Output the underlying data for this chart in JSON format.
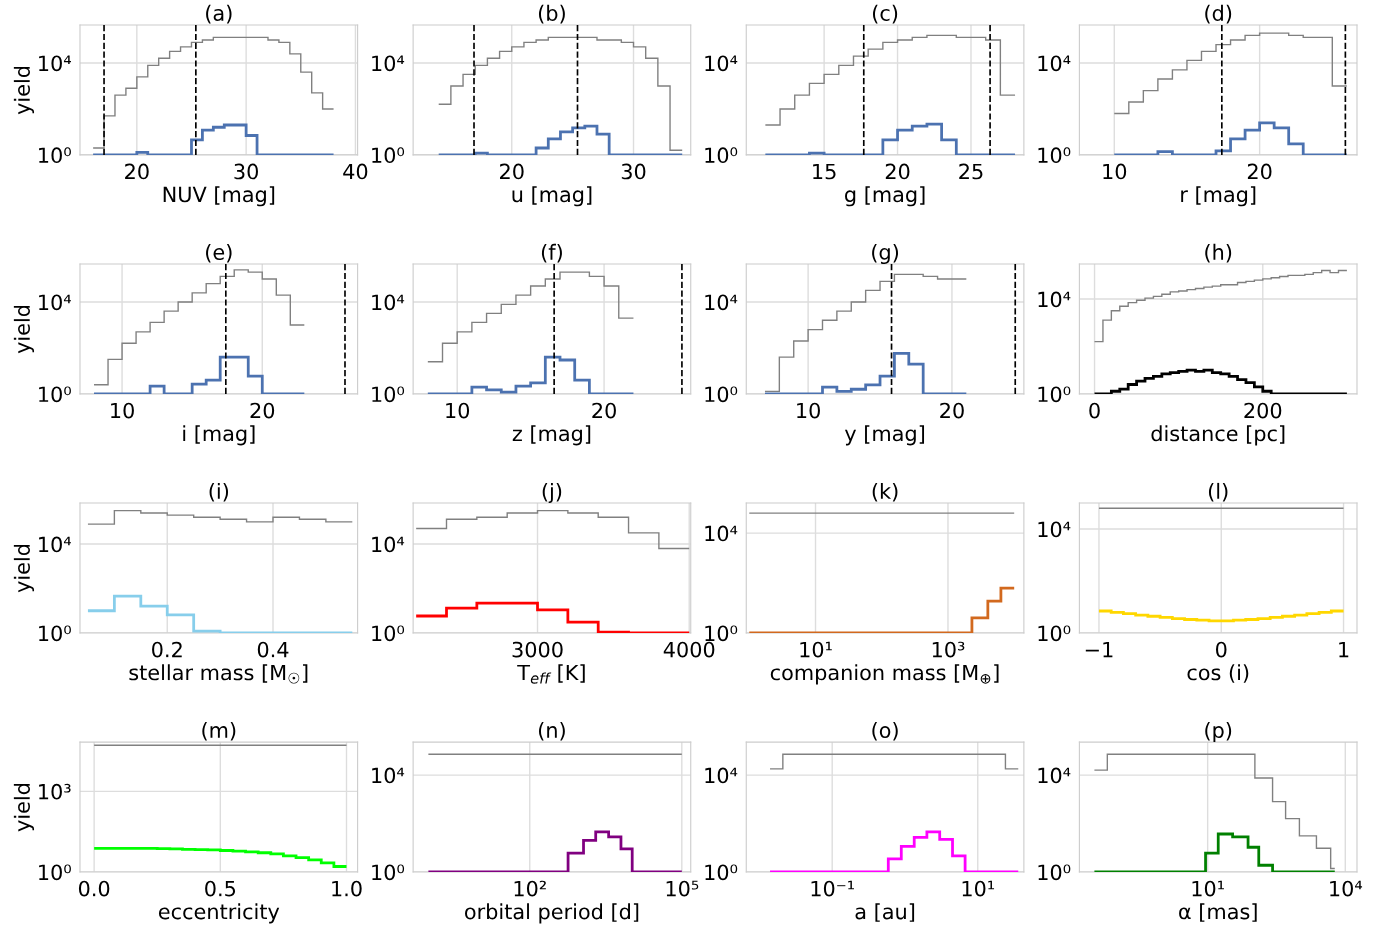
{
  "chart_data": [
    {
      "type": "histogram",
      "title": "(a)",
      "xlabel": "NUV [mag]",
      "ylabel": "yield",
      "log": "y",
      "grid": true,
      "xlim": [
        14.8,
        40.2
      ],
      "xticks": [
        20,
        30,
        40
      ],
      "ylim": [
        1,
        450000
      ],
      "yticks": [
        {
          "value": 1,
          "label": "10⁰"
        },
        {
          "value": 10000,
          "label": "10⁴"
        }
      ],
      "ref_lines": [
        {
          "axis": "x",
          "value": 17,
          "color": "#000000",
          "line_style": "dashed"
        },
        {
          "axis": "x",
          "value": 25.4,
          "color": "#000000",
          "line_style": "dashed"
        }
      ],
      "bins": [
        16,
        17,
        18,
        19,
        20,
        21,
        22,
        23,
        24,
        25,
        26,
        27,
        28,
        29,
        30,
        31,
        32,
        33,
        34,
        35,
        36,
        37,
        38
      ],
      "series": [
        {
          "color": "#808080",
          "values": [
            2,
            50,
            400,
            800,
            2500,
            7900,
            16000,
            32000,
            50000,
            79000,
            100000,
            130000,
            130000,
            130000,
            130000,
            130000,
            100000,
            79000,
            25000,
            4000,
            500,
            100
          ]
        },
        {
          "color": "#4c72b0",
          "values": [
            null,
            null,
            null,
            null,
            1.3,
            null,
            null,
            null,
            null,
            4.5,
            12,
            16,
            20,
            20,
            7,
            1,
            null,
            null,
            null,
            null,
            null,
            null
          ]
        }
      ]
    },
    {
      "type": "histogram",
      "title": "(b)",
      "xlabel": "u [mag]",
      "log": "y",
      "grid": true,
      "xlim": [
        11.9,
        34.7
      ],
      "xticks": [
        20,
        30
      ],
      "ylim": [
        1,
        450000
      ],
      "yticks": [
        {
          "value": 1,
          "label": "10⁰"
        },
        {
          "value": 10000,
          "label": "10⁴"
        }
      ],
      "ref_lines": [
        {
          "axis": "x",
          "value": 16.9,
          "color": "#000000",
          "line_style": "dashed"
        },
        {
          "axis": "x",
          "value": 25.4,
          "color": "#000000",
          "line_style": "dashed"
        }
      ],
      "bins": [
        14,
        15,
        16,
        17,
        18,
        19,
        20,
        21,
        22,
        23,
        24,
        25,
        26,
        27,
        28,
        29,
        30,
        31,
        32,
        33,
        34
      ],
      "series": [
        {
          "color": "#808080",
          "values": [
            160,
            1000,
            3200,
            7900,
            16000,
            32000,
            50000,
            79000,
            100000,
            130000,
            130000,
            130000,
            130000,
            100000,
            100000,
            79000,
            50000,
            16000,
            1000,
            1.6
          ]
        },
        {
          "color": "#4c72b0",
          "values": [
            null,
            null,
            null,
            1.2,
            null,
            null,
            null,
            null,
            2,
            5,
            10,
            15,
            18,
            8,
            null,
            null,
            null,
            null,
            null,
            null
          ]
        }
      ]
    },
    {
      "type": "histogram",
      "title": "(c)",
      "xlabel": "g [mag]",
      "log": "y",
      "grid": true,
      "xlim": [
        9.7,
        28.6
      ],
      "xticks": [
        15,
        20,
        25
      ],
      "ylim": [
        1,
        450000
      ],
      "yticks": [
        {
          "value": 1,
          "label": "10⁰"
        },
        {
          "value": 10000,
          "label": "10⁴"
        }
      ],
      "ref_lines": [
        {
          "axis": "x",
          "value": 17.7,
          "color": "#000000",
          "line_style": "dashed"
        },
        {
          "axis": "x",
          "value": 26.3,
          "color": "#000000",
          "line_style": "dashed"
        }
      ],
      "bins": [
        11,
        12,
        13,
        14,
        15,
        16,
        17,
        18,
        19,
        20,
        21,
        22,
        23,
        24,
        25,
        26,
        27,
        28
      ],
      "series": [
        {
          "color": "#808080",
          "values": [
            20,
            100,
            400,
            1300,
            3200,
            7900,
            20000,
            40000,
            79000,
            100000,
            130000,
            160000,
            160000,
            130000,
            130000,
            100000,
            400
          ]
        },
        {
          "color": "#4c72b0",
          "values": [
            null,
            null,
            null,
            1.2,
            null,
            null,
            null,
            null,
            4.5,
            12,
            18,
            22,
            4.5,
            null,
            null,
            null,
            null
          ]
        }
      ]
    },
    {
      "type": "histogram",
      "title": "(d)",
      "xlabel": "r [mag]",
      "log": "y",
      "grid": true,
      "xlim": [
        7.6,
        26.7
      ],
      "xticks": [
        10,
        20
      ],
      "ylim": [
        1,
        450000
      ],
      "yticks": [
        {
          "value": 1,
          "label": "10⁰"
        },
        {
          "value": 10000,
          "label": "10⁴"
        }
      ],
      "ref_lines": [
        {
          "axis": "x",
          "value": 17.4,
          "color": "#000000",
          "line_style": "dashed"
        },
        {
          "axis": "x",
          "value": 25.9,
          "color": "#000000",
          "line_style": "dashed"
        }
      ],
      "bins": [
        10,
        11,
        12,
        13,
        14,
        15,
        16,
        17,
        18,
        19,
        20,
        21,
        22,
        23,
        24,
        25,
        26
      ],
      "series": [
        {
          "color": "#808080",
          "values": [
            63,
            200,
            630,
            2000,
            5000,
            13000,
            32000,
            63000,
            100000,
            160000,
            200000,
            200000,
            160000,
            130000,
            130000,
            1000
          ]
        },
        {
          "color": "#4c72b0",
          "values": [
            null,
            null,
            null,
            1.4,
            null,
            null,
            null,
            1.5,
            5,
            12,
            25,
            15,
            3,
            null,
            null,
            null
          ]
        }
      ]
    },
    {
      "type": "histogram",
      "title": "(e)",
      "xlabel": "i [mag]",
      "ylabel": "yield",
      "log": "y",
      "grid": true,
      "xlim": [
        7.0,
        26.8
      ],
      "xticks": [
        10,
        20
      ],
      "ylim": [
        1,
        450000
      ],
      "yticks": [
        {
          "value": 1,
          "label": "10⁰"
        },
        {
          "value": 10000,
          "label": "10⁴"
        }
      ],
      "ref_lines": [
        {
          "axis": "x",
          "value": 17.4,
          "color": "#000000",
          "line_style": "dashed"
        },
        {
          "axis": "x",
          "value": 25.9,
          "color": "#000000",
          "line_style": "dashed"
        }
      ],
      "bins": [
        8,
        9,
        10,
        11,
        12,
        13,
        14,
        15,
        16,
        17,
        18,
        19,
        20,
        21,
        22,
        23
      ],
      "series": [
        {
          "color": "#808080",
          "values": [
            2.5,
            32,
            160,
            500,
            1300,
            4000,
            10000,
            25000,
            63000,
            130000,
            250000,
            200000,
            100000,
            20000,
            1000
          ]
        },
        {
          "color": "#4c72b0",
          "values": [
            null,
            null,
            null,
            null,
            2.2,
            null,
            null,
            2.7,
            4,
            40,
            40,
            6,
            null,
            null,
            null
          ]
        }
      ]
    },
    {
      "type": "histogram",
      "title": "(f)",
      "xlabel": "z [mag]",
      "log": "y",
      "grid": true,
      "xlim": [
        7.0,
        25.9
      ],
      "xticks": [
        10,
        20
      ],
      "ylim": [
        1,
        450000
      ],
      "yticks": [
        {
          "value": 1,
          "label": "10⁰"
        },
        {
          "value": 10000,
          "label": "10⁴"
        }
      ],
      "ref_lines": [
        {
          "axis": "x",
          "value": 16.6,
          "color": "#000000",
          "line_style": "dashed"
        },
        {
          "axis": "x",
          "value": 25.3,
          "color": "#000000",
          "line_style": "dashed"
        }
      ],
      "bins": [
        8,
        9,
        10,
        11,
        12,
        13,
        14,
        15,
        16,
        17,
        18,
        19,
        20,
        21,
        22
      ],
      "series": [
        {
          "color": "#808080",
          "values": [
            25,
            160,
            500,
            1300,
            3200,
            7900,
            20000,
            50000,
            100000,
            200000,
            200000,
            130000,
            50000,
            2000
          ]
        },
        {
          "color": "#4c72b0",
          "values": [
            null,
            null,
            null,
            2,
            1.5,
            1.2,
            2.2,
            3,
            40,
            30,
            4,
            null,
            null,
            null
          ]
        }
      ]
    },
    {
      "type": "histogram",
      "title": "(g)",
      "xlabel": "y [mag]",
      "log": "y",
      "grid": true,
      "xlim": [
        5.7,
        25.0
      ],
      "xticks": [
        10,
        20
      ],
      "ylim": [
        1,
        450000
      ],
      "yticks": [
        {
          "value": 1,
          "label": "10⁰"
        },
        {
          "value": 10000,
          "label": "10⁴"
        }
      ],
      "ref_lines": [
        {
          "axis": "x",
          "value": 15.8,
          "color": "#000000",
          "line_style": "dashed"
        },
        {
          "axis": "x",
          "value": 24.4,
          "color": "#000000",
          "line_style": "dashed"
        }
      ],
      "bins": [
        7,
        8,
        9,
        10,
        11,
        12,
        13,
        14,
        15,
        16,
        17,
        18,
        19,
        20,
        21
      ],
      "series": [
        {
          "color": "#808080",
          "values": [
            1.3,
            40,
            200,
            630,
            1600,
            4000,
            10000,
            32000,
            79000,
            160000,
            160000,
            130000,
            100000,
            100000
          ]
        },
        {
          "color": "#4c72b0",
          "values": [
            null,
            null,
            null,
            null,
            2,
            1.3,
            1.6,
            2.5,
            6,
            58,
            20,
            null,
            null,
            null
          ]
        }
      ]
    },
    {
      "type": "histogram",
      "title": "(h)",
      "xlabel": "distance [pc]",
      "log": "y",
      "grid": true,
      "xlim": [
        -18,
        312
      ],
      "xticks": [
        0,
        200
      ],
      "ylim": [
        1,
        300000
      ],
      "yticks": [
        {
          "value": 1,
          "label": "10⁰"
        },
        {
          "value": 10000,
          "label": "10⁴"
        }
      ],
      "bins": [
        0,
        10,
        20,
        30,
        40,
        50,
        60,
        70,
        80,
        90,
        100,
        110,
        120,
        130,
        140,
        150,
        160,
        170,
        180,
        190,
        200,
        210,
        220,
        230,
        240,
        250,
        260,
        270,
        280,
        290,
        300
      ],
      "series": [
        {
          "color": "#808080",
          "values": [
            160,
            1300,
            3200,
            5000,
            7100,
            8900,
            11000,
            13000,
            16000,
            20000,
            22000,
            25000,
            28000,
            32000,
            35000,
            40000,
            40000,
            50000,
            56000,
            63000,
            71000,
            79000,
            89000,
            100000,
            100000,
            110000,
            130000,
            160000,
            130000,
            160000
          ]
        },
        {
          "color": "#000000",
          "values": [
            null,
            null,
            1.3,
            1.6,
            2.5,
            3.5,
            4.5,
            5.5,
            7,
            8,
            9,
            10,
            9,
            10,
            8,
            7,
            5.5,
            4,
            3,
            2,
            1.3,
            null,
            null,
            null,
            null,
            null,
            null,
            null,
            null,
            null
          ]
        }
      ]
    },
    {
      "type": "histogram",
      "title": "(i)",
      "xlabel": "stellar mass [M$_{☉}$]",
      "ylabel": "yield",
      "log": "y",
      "grid": true,
      "xlim": [
        0.035,
        0.56
      ],
      "xticks": [
        0.2,
        0.4
      ],
      "ylim": [
        1,
        700000
      ],
      "yticks": [
        {
          "value": 1,
          "label": "10⁰"
        },
        {
          "value": 10000,
          "label": "10⁴"
        }
      ],
      "bins": [
        0.05,
        0.1,
        0.15,
        0.2,
        0.25,
        0.3,
        0.35,
        0.4,
        0.45,
        0.5,
        0.55
      ],
      "series": [
        {
          "color": "#808080",
          "values": [
            79000,
            320000,
            250000,
            200000,
            160000,
            130000,
            100000,
            160000,
            130000,
            100000
          ]
        },
        {
          "color": "#87ceeb",
          "values": [
            10,
            46,
            16,
            6.5,
            1.2,
            null,
            null,
            null,
            null,
            null
          ]
        }
      ]
    },
    {
      "type": "histogram",
      "title": "(j)",
      "xlabel": "T$_{eff}$ [K]",
      "log": "y",
      "grid": true,
      "xlim": [
        2180,
        4010
      ],
      "xticks": [
        3000,
        4000
      ],
      "ylim": [
        1,
        700000
      ],
      "yticks": [
        {
          "value": 1,
          "label": "10⁰"
        },
        {
          "value": 10000,
          "label": "10⁴"
        }
      ],
      "bins": [
        2200,
        2400,
        2600,
        2800,
        3000,
        3200,
        3400,
        3600,
        3800,
        4000
      ],
      "series": [
        {
          "color": "#808080",
          "values": [
            50000,
            130000,
            160000,
            250000,
            320000,
            250000,
            160000,
            32000,
            6300
          ]
        },
        {
          "color": "#ff0000",
          "values": [
            5.8,
            13,
            22,
            22,
            11,
            3.1,
            1.1,
            null,
            null
          ]
        }
      ]
    },
    {
      "type": "histogram",
      "title": "(k)",
      "xlabel": "companion mass [M$_{⊕}$]",
      "log": "xy",
      "grid": true,
      "xlim": [
        0.9,
        14000
      ],
      "xticks": [
        {
          "value": 10,
          "label": "10¹"
        },
        {
          "value": 1000,
          "label": "10³"
        }
      ],
      "ylim": [
        1,
        160000
      ],
      "yticks": [
        {
          "value": 1,
          "label": "10⁰"
        },
        {
          "value": 10000,
          "label": "10⁴"
        }
      ],
      "bins": [
        1,
        2300,
        4000,
        6300,
        10000
      ],
      "series": [
        {
          "color": "#808080",
          "values": [
            63000,
            63000,
            63000,
            63000
          ]
        },
        {
          "color": "#d2691e",
          "values": [
            null,
            4,
            19,
            63
          ]
        }
      ]
    },
    {
      "type": "histogram",
      "title": "(l)",
      "xlabel": "cos (i)",
      "log": "y",
      "grid": true,
      "xlim": [
        -1.16,
        1.11
      ],
      "xticks": [
        {
          "value": -1,
          "label": "−1"
        },
        0,
        1
      ],
      "ylim": [
        1,
        100000
      ],
      "yticks": [
        {
          "value": 1,
          "label": "10⁰"
        },
        {
          "value": 10000,
          "label": "10⁴"
        }
      ],
      "bins": [
        -1,
        -0.9,
        -0.8,
        -0.7,
        -0.6,
        -0.5,
        -0.4,
        -0.3,
        -0.2,
        -0.1,
        0,
        0.1,
        0.2,
        0.3,
        0.4,
        0.5,
        0.6,
        0.7,
        0.8,
        0.9,
        1
      ],
      "series": [
        {
          "color": "#808080",
          "values": [
            63000,
            63000,
            63000,
            63000,
            63000,
            63000,
            63000,
            63000,
            63000,
            63000,
            63000,
            63000,
            63000,
            63000,
            63000,
            63000,
            63000,
            63000,
            63000,
            63000
          ]
        },
        {
          "color": "#ffd700",
          "values": [
            7,
            6.2,
            5.5,
            4.9,
            4.4,
            4.0,
            3.6,
            3.3,
            3.1,
            2.9,
            2.9,
            3.1,
            3.3,
            3.6,
            4.0,
            4.4,
            4.9,
            5.5,
            6.2,
            7
          ]
        }
      ]
    },
    {
      "type": "histogram",
      "title": "(m)",
      "xlabel": "eccentricity",
      "ylabel": "yield",
      "log": "y",
      "grid": true,
      "xlim": [
        -0.056,
        1.044
      ],
      "xticks": [
        {
          "value": 0,
          "label": "0.0"
        },
        0.5,
        {
          "value": 1,
          "label": "1.0"
        }
      ],
      "ylim": [
        1,
        68000
      ],
      "yticks": [
        {
          "value": 1,
          "label": "10⁰"
        },
        {
          "value": 1000,
          "label": "10³"
        }
      ],
      "bins": [
        0,
        0.05,
        0.1,
        0.15,
        0.2,
        0.25,
        0.3,
        0.35,
        0.4,
        0.45,
        0.5,
        0.55,
        0.6,
        0.65,
        0.7,
        0.75,
        0.8,
        0.85,
        0.9,
        0.95,
        1
      ],
      "series": [
        {
          "color": "#808080",
          "values": [
            52000,
            52000,
            52000,
            52000,
            52000,
            52000,
            52000,
            52000,
            52000,
            52000,
            52000,
            52000,
            52000,
            52000,
            52000,
            52000,
            52000,
            52000,
            52000,
            52000
          ]
        },
        {
          "color": "#00ff00",
          "values": [
            7.6,
            7.6,
            7.6,
            7.6,
            7.5,
            7.4,
            7.2,
            7.0,
            6.8,
            6.6,
            6.3,
            6.0,
            5.6,
            5.2,
            4.7,
            4.0,
            3.4,
            2.8,
            2.2,
            1.6
          ]
        }
      ]
    },
    {
      "type": "histogram",
      "title": "(n)",
      "xlabel": "orbital period [d]",
      "log": "xy",
      "grid": true,
      "xlim": [
        0.5,
        150000
      ],
      "xticks": [
        {
          "value": 100,
          "label": "10²"
        },
        {
          "value": 100000,
          "label": "10⁵"
        }
      ],
      "ylim": [
        1,
        230000
      ],
      "yticks": [
        {
          "value": 1,
          "label": "10⁰"
        },
        {
          "value": 10000,
          "label": "10⁴"
        }
      ],
      "bins": [
        1,
        570,
        1150,
        2000,
        3600,
        6300,
        10500,
        100000
      ],
      "series": [
        {
          "color": "#808080",
          "values": [
            72000,
            72000,
            72000,
            72000,
            72000,
            72000,
            72000
          ]
        },
        {
          "color": "#800080",
          "values": [
            null,
            6,
            20,
            45,
            28,
            9,
            null
          ]
        }
      ]
    },
    {
      "type": "histogram",
      "title": "(o)",
      "xlabel": "a [au]",
      "log": "xy",
      "grid": true,
      "xlim": [
        0.0066,
        43
      ],
      "xticks": [
        {
          "value": 0.1,
          "label": "10⁻¹"
        },
        {
          "value": 10,
          "label": "10¹"
        }
      ],
      "ylim": [
        1,
        230000
      ],
      "yticks": [
        {
          "value": 1,
          "label": "10⁰"
        },
        {
          "value": 10000,
          "label": "10⁴"
        }
      ],
      "bins": [
        0.014,
        0.021,
        0.59,
        0.89,
        1.34,
        2.0,
        3.0,
        4.5,
        6.7,
        24,
        36
      ],
      "series": [
        {
          "color": "#808080",
          "values": [
            18000,
            72000,
            72000,
            72000,
            72000,
            72000,
            72000,
            72000,
            72000,
            18000
          ]
        },
        {
          "color": "#ff00ff",
          "values": [
            null,
            null,
            3.5,
            11.5,
            27,
            45,
            22,
            4.6,
            null,
            null
          ]
        }
      ]
    },
    {
      "type": "histogram",
      "title": "(p)",
      "xlabel": "α [mas]",
      "log": "xy",
      "grid": true,
      "xlim": [
        0.016,
        18000
      ],
      "xticks": [
        {
          "value": 10,
          "label": "10¹"
        },
        {
          "value": 10000,
          "label": "10⁴"
        }
      ],
      "ylim": [
        1,
        230000
      ],
      "yticks": [
        {
          "value": 1,
          "label": "10⁰"
        },
        {
          "value": 10000,
          "label": "10⁴"
        }
      ],
      "bins": [
        0.034,
        0.065,
        9,
        17,
        35,
        76,
        107,
        130,
        260,
        500,
        1000,
        2350,
        4800,
        5900
      ],
      "series": [
        {
          "color": "#808080",
          "values": [
            16000,
            72000,
            72000,
            72000,
            72000,
            72000,
            7600,
            7600,
            800,
            160,
            31,
            9.5,
            1.4
          ]
        },
        {
          "color": "#008000",
          "values": [
            null,
            null,
            6,
            37,
            28,
            10.5,
            10.5,
            1.9,
            null,
            null,
            null,
            null,
            null
          ]
        }
      ]
    }
  ]
}
